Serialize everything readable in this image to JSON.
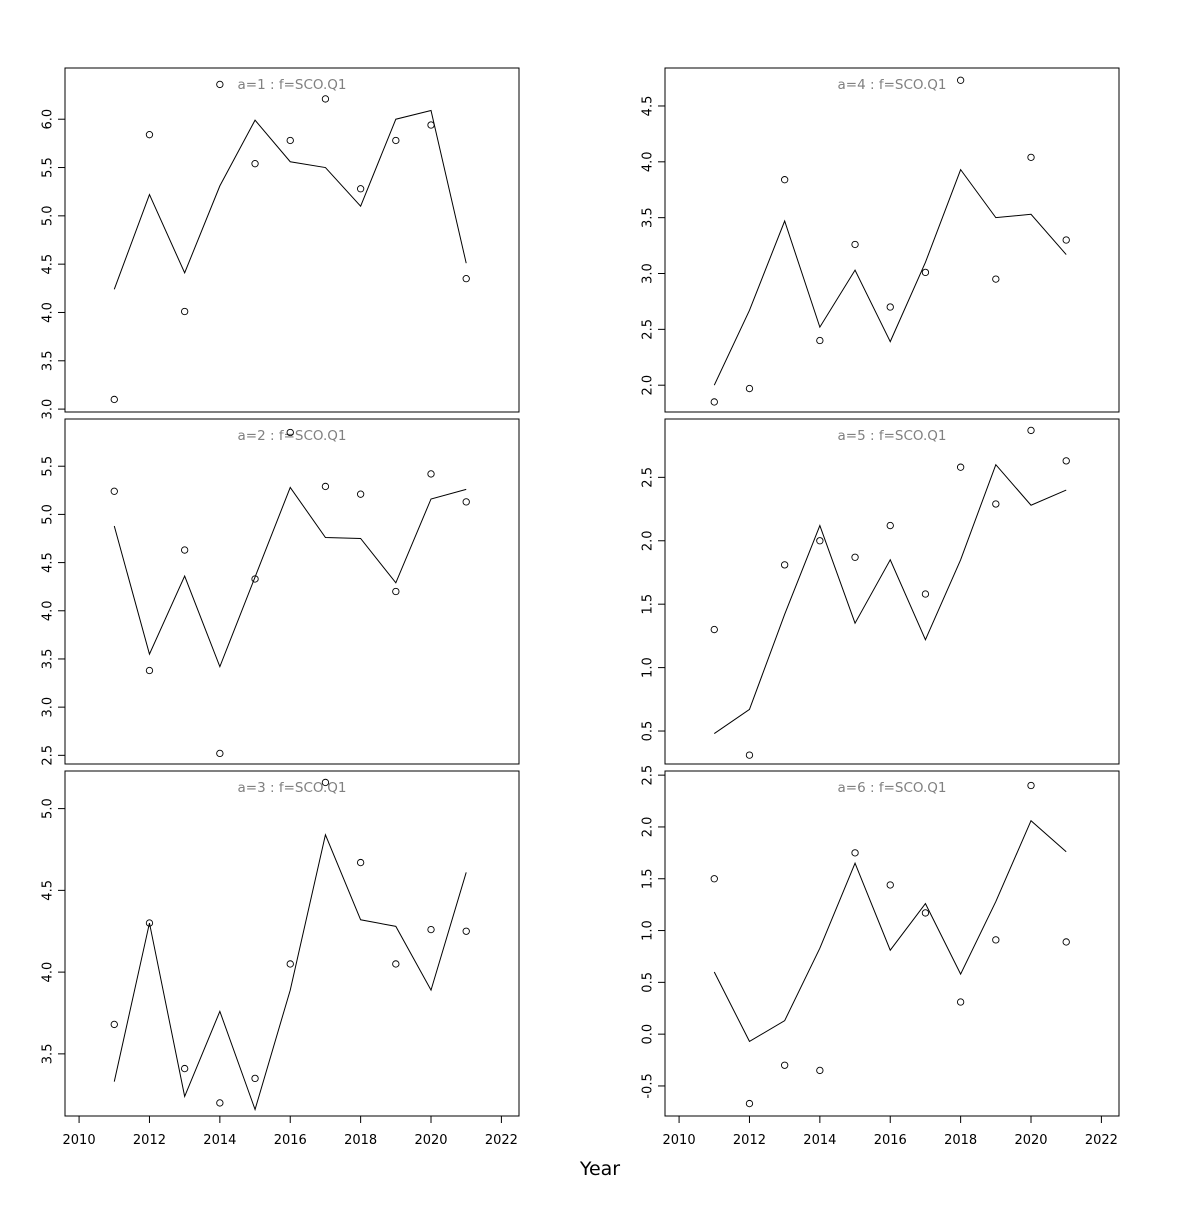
{
  "xlabel": "Year",
  "chart_data": [
    {
      "type": "scatter",
      "title": "a=1 : f=SCO.Q1",
      "x": [
        2011,
        2012,
        2013,
        2014,
        2015,
        2016,
        2017,
        2018,
        2019,
        2020,
        2021
      ],
      "series": [
        {
          "kind": "points",
          "values": [
            3.1,
            5.84,
            4.01,
            6.36,
            5.54,
            5.78,
            6.21,
            5.28,
            5.78,
            5.94,
            4.35
          ]
        },
        {
          "kind": "line",
          "values": [
            4.24,
            5.22,
            4.41,
            5.31,
            5.99,
            5.56,
            5.5,
            5.1,
            6.0,
            6.09,
            4.51
          ]
        }
      ],
      "xlim": [
        2009.6,
        2022.5
      ],
      "ylim": [
        2.97,
        6.53
      ],
      "yticks": [
        "3.0",
        "3.5",
        "4.0",
        "4.5",
        "5.0",
        "5.5",
        "6.0"
      ]
    },
    {
      "type": "scatter",
      "title": "a=2 : f=SCO.Q1",
      "x": [
        2011,
        2012,
        2013,
        2014,
        2015,
        2016,
        2017,
        2018,
        2019,
        2020,
        2021
      ],
      "series": [
        {
          "kind": "points",
          "values": [
            5.24,
            3.38,
            4.63,
            2.52,
            4.33,
            5.85,
            5.29,
            5.21,
            4.2,
            5.42,
            5.13
          ]
        },
        {
          "kind": "line",
          "values": [
            4.88,
            3.55,
            4.36,
            3.42,
            4.35,
            5.28,
            4.76,
            4.75,
            4.29,
            5.16,
            5.26
          ]
        }
      ],
      "xlim": [
        2009.6,
        2022.5
      ],
      "ylim": [
        2.41,
        5.99
      ],
      "yticks": [
        "2.5",
        "3.0",
        "3.5",
        "4.0",
        "4.5",
        "5.0",
        "5.5"
      ]
    },
    {
      "type": "scatter",
      "title": "a=3 : f=SCO.Q1",
      "x": [
        2011,
        2012,
        2013,
        2014,
        2015,
        2016,
        2017,
        2018,
        2019,
        2020,
        2021
      ],
      "series": [
        {
          "kind": "points",
          "values": [
            3.68,
            4.3,
            3.41,
            3.2,
            3.35,
            4.05,
            5.16,
            4.67,
            4.05,
            4.26,
            4.25
          ]
        },
        {
          "kind": "line",
          "values": [
            3.33,
            4.3,
            3.24,
            3.76,
            3.16,
            3.89,
            4.84,
            4.32,
            4.28,
            3.89,
            4.61
          ]
        }
      ],
      "xlim": [
        2009.6,
        2022.5
      ],
      "ylim": [
        3.12,
        5.23
      ],
      "yticks": [
        "3.5",
        "4.0",
        "4.5",
        "5.0"
      ]
    },
    {
      "type": "scatter",
      "title": "a=4 : f=SCO.Q1",
      "x": [
        2011,
        2012,
        2013,
        2014,
        2015,
        2016,
        2017,
        2018,
        2019,
        2020,
        2021
      ],
      "series": [
        {
          "kind": "points",
          "values": [
            1.85,
            1.97,
            3.84,
            2.4,
            3.26,
            2.7,
            3.01,
            4.73,
            2.95,
            4.04,
            3.3
          ]
        },
        {
          "kind": "line",
          "values": [
            2.0,
            2.67,
            3.47,
            2.52,
            3.03,
            2.39,
            3.1,
            3.93,
            3.5,
            3.53,
            3.17
          ]
        }
      ],
      "xlim": [
        2009.6,
        2022.5
      ],
      "ylim": [
        1.76,
        4.84
      ],
      "yticks": [
        "2.0",
        "2.5",
        "3.0",
        "3.5",
        "4.0",
        "4.5"
      ]
    },
    {
      "type": "scatter",
      "title": "a=5 : f=SCO.Q1",
      "x": [
        2011,
        2012,
        2013,
        2014,
        2015,
        2016,
        2017,
        2018,
        2019,
        2020,
        2021
      ],
      "series": [
        {
          "kind": "points",
          "values": [
            1.3,
            0.31,
            1.81,
            2.0,
            1.87,
            2.12,
            1.58,
            2.58,
            2.29,
            2.87,
            2.63
          ]
        },
        {
          "kind": "line",
          "values": [
            0.48,
            0.67,
            1.42,
            2.12,
            1.35,
            1.85,
            1.22,
            1.85,
            2.6,
            2.28,
            2.4
          ]
        }
      ],
      "xlim": [
        2009.6,
        2022.5
      ],
      "ylim": [
        0.24,
        2.96
      ],
      "yticks": [
        "0.5",
        "1.0",
        "1.5",
        "2.0",
        "2.5"
      ]
    },
    {
      "type": "scatter",
      "title": "a=6 : f=SCO.Q1",
      "x": [
        2011,
        2012,
        2013,
        2014,
        2015,
        2016,
        2017,
        2018,
        2019,
        2020,
        2021
      ],
      "series": [
        {
          "kind": "points",
          "values": [
            1.5,
            -0.67,
            -0.3,
            -0.35,
            1.75,
            1.44,
            1.17,
            0.31,
            0.91,
            2.4,
            0.89
          ]
        },
        {
          "kind": "line",
          "values": [
            0.6,
            -0.07,
            0.13,
            0.83,
            1.65,
            0.81,
            1.26,
            0.58,
            1.28,
            2.06,
            1.76
          ]
        }
      ],
      "xlim": [
        2009.6,
        2022.5
      ],
      "ylim": [
        -0.79,
        2.54
      ],
      "yticks": [
        "-0.5",
        "0.0",
        "0.5",
        "1.0",
        "1.5",
        "2.0",
        "2.5"
      ]
    }
  ],
  "xticks": [
    "2010",
    "2012",
    "2014",
    "2016",
    "2018",
    "2020",
    "2022"
  ]
}
